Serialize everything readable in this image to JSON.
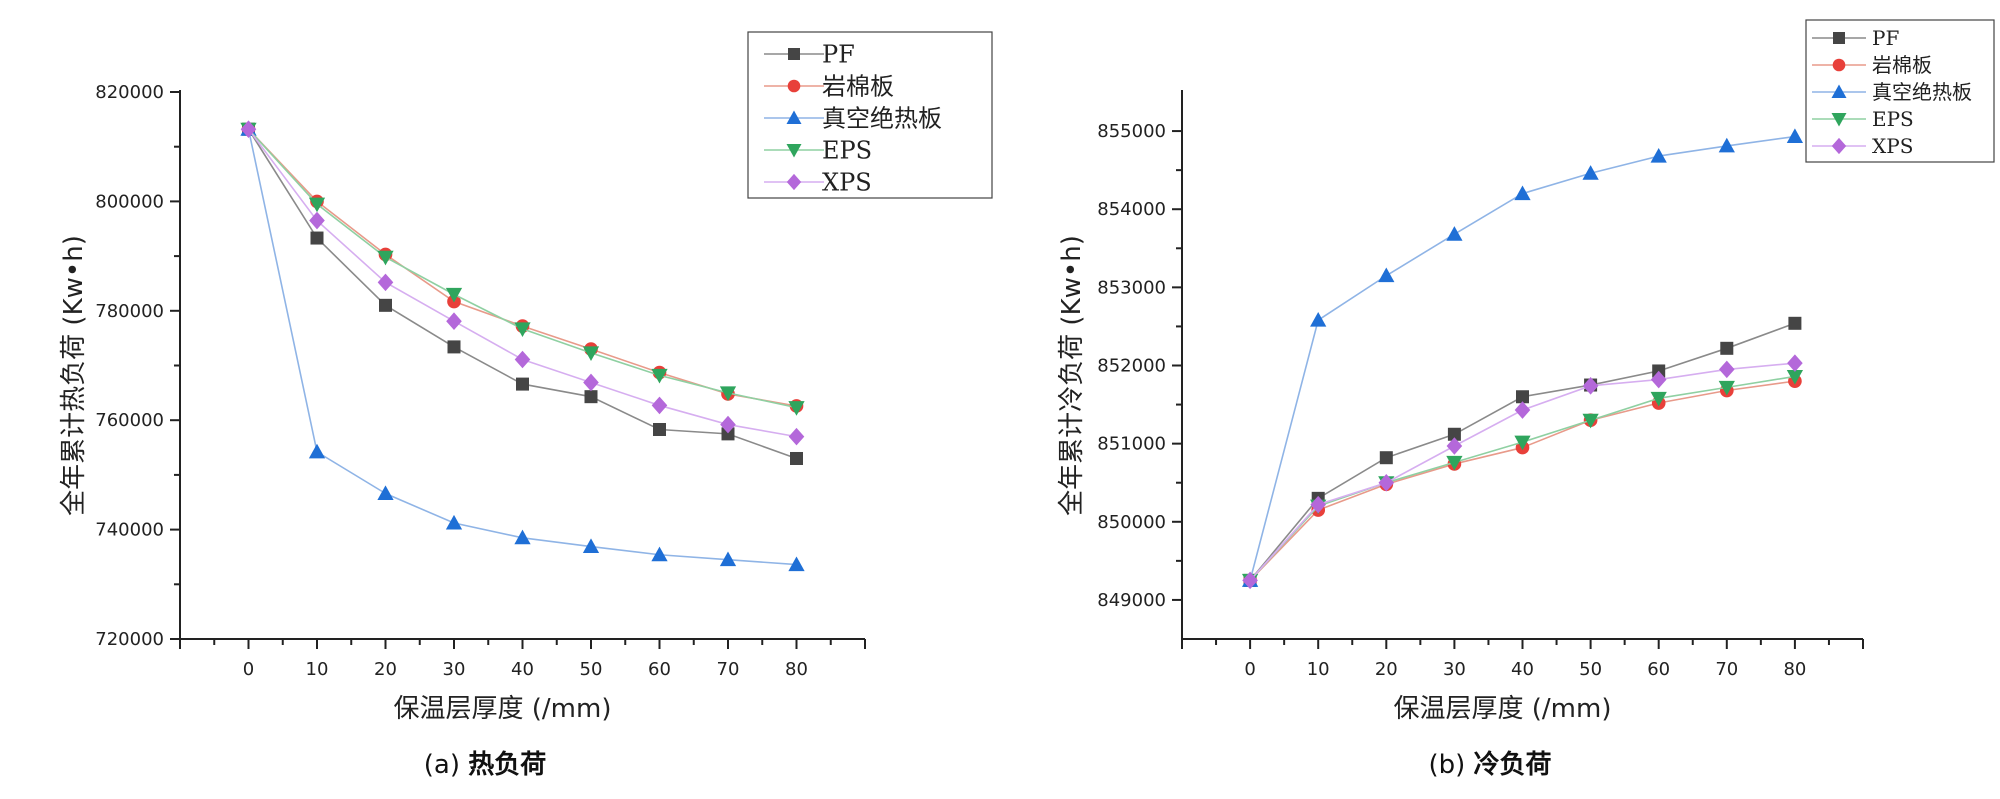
{
  "colors": {
    "PF": "#454545",
    "岩棉板": "#e8403a",
    "真空绝热板": "#1f6fd6",
    "EPS": "#2fa55d",
    "XPS": "#b468da"
  },
  "line_colors": {
    "PF": "#8a8a8a",
    "岩棉板": "#e89a8a",
    "真空绝热板": "#8fb4e6",
    "EPS": "#8fd0a2",
    "XPS": "#d6aef0"
  },
  "chart_data": [
    {
      "id": "heat",
      "type": "line",
      "caption_prefix": "(a) ",
      "caption_main": "热负荷",
      "xlabel": "保温层厚度 (/mm)",
      "ylabel": "全年累计热负荷 (Kw•h)",
      "x": [
        0,
        10,
        20,
        30,
        40,
        50,
        60,
        70,
        80
      ],
      "xlim": [
        -10,
        90
      ],
      "ylim": [
        720000,
        820000
      ],
      "yticks": [
        720000,
        740000,
        760000,
        780000,
        800000,
        820000
      ],
      "ytick_labels": [
        "720000",
        "740000",
        "760000",
        "780000",
        "800000",
        "820000"
      ],
      "xtick_labels": [
        "0",
        "10",
        "20",
        "30",
        "40",
        "50",
        "60",
        "70",
        "80"
      ],
      "legend_position": "top-right",
      "series": [
        {
          "name": "PF",
          "marker": "square",
          "values": [
            813200,
            793300,
            781000,
            773400,
            766600,
            764300,
            758300,
            757500,
            753000
          ]
        },
        {
          "name": "岩棉板",
          "marker": "circle",
          "values": [
            813200,
            800000,
            790300,
            781700,
            777200,
            773000,
            768700,
            764800,
            762600
          ]
        },
        {
          "name": "真空绝热板",
          "marker": "triangle-up",
          "values": [
            813200,
            754200,
            746600,
            741200,
            738500,
            736900,
            735400,
            734500,
            733600
          ]
        },
        {
          "name": "EPS",
          "marker": "triangle-down",
          "values": [
            813200,
            799500,
            789800,
            783000,
            776700,
            772300,
            768200,
            765000,
            762300
          ]
        },
        {
          "name": "XPS",
          "marker": "diamond",
          "values": [
            813200,
            796500,
            785200,
            778100,
            771100,
            766900,
            762700,
            759200,
            757000
          ]
        }
      ]
    },
    {
      "id": "cool",
      "type": "line",
      "caption_prefix": "(b) ",
      "caption_main": "冷负荷",
      "xlabel": "保温层厚度 (/mm)",
      "ylabel": "全年累计冷负荷 (Kw•h)",
      "x": [
        0,
        10,
        20,
        30,
        40,
        50,
        60,
        70,
        80
      ],
      "xlim": [
        -10,
        90
      ],
      "ylim": [
        848500,
        855500
      ],
      "yticks": [
        849000,
        850000,
        851000,
        852000,
        853000,
        854000,
        855000
      ],
      "ytick_labels": [
        "849000",
        "850000",
        "851000",
        "852000",
        "853000",
        "854000",
        "855000"
      ],
      "xtick_labels": [
        "0",
        "10",
        "20",
        "30",
        "40",
        "50",
        "60",
        "70",
        "80"
      ],
      "legend_position": "top-right",
      "series": [
        {
          "name": "PF",
          "marker": "square",
          "values": [
            849250,
            850300,
            850820,
            851120,
            851600,
            851750,
            851930,
            852220,
            852540
          ]
        },
        {
          "name": "岩棉板",
          "marker": "circle",
          "values": [
            849250,
            850150,
            850480,
            850740,
            850950,
            851300,
            851520,
            851680,
            851800
          ]
        },
        {
          "name": "真空绝热板",
          "marker": "triangle-up",
          "values": [
            849250,
            852580,
            853150,
            853680,
            854200,
            854460,
            854680,
            854810,
            854930
          ]
        },
        {
          "name": "EPS",
          "marker": "triangle-down",
          "values": [
            849250,
            850200,
            850500,
            850760,
            851020,
            851300,
            851580,
            851720,
            851860
          ]
        },
        {
          "name": "XPS",
          "marker": "diamond",
          "values": [
            849250,
            850220,
            850500,
            850970,
            851430,
            851740,
            851820,
            851950,
            852030
          ]
        }
      ]
    }
  ]
}
